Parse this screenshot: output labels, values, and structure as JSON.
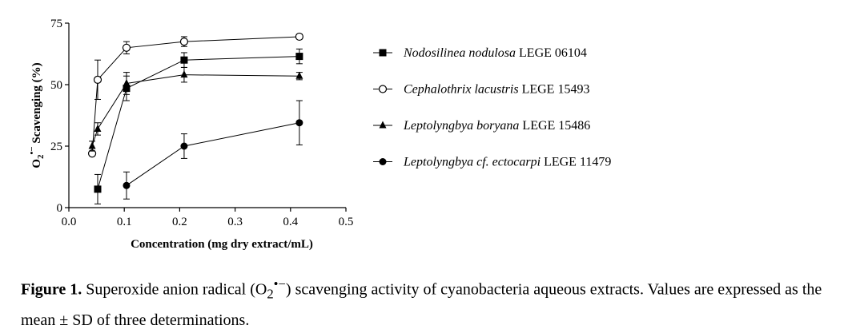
{
  "chart_data": {
    "type": "line",
    "title": "",
    "xlabel": "Concentration (mg dry extract/mL)",
    "ylabel_parts": {
      "base": "O",
      "sub": "2",
      "sup": "•−",
      "rest": " Scavenging (%)"
    },
    "xlim": [
      0,
      0.5
    ],
    "ylim": [
      0,
      75
    ],
    "xticks": [
      "0.0",
      "0.1",
      "0.2",
      "0.3",
      "0.4",
      "0.5"
    ],
    "xtick_values": [
      0,
      0.1,
      0.2,
      0.3,
      0.4,
      0.5
    ],
    "yticks": [
      "0",
      "25",
      "50",
      "75"
    ],
    "ytick_values": [
      0,
      25,
      50,
      75
    ],
    "grid": false,
    "legend_position": "right",
    "series": [
      {
        "name_italic": "Nodosilinea nodulosa",
        "name_rest": " LEGE 06104",
        "marker": "square-filled",
        "x": [
          0.052,
          0.104,
          0.208,
          0.416
        ],
        "y": [
          7.5,
          48.5,
          60,
          61.5
        ],
        "err": [
          6,
          5,
          3,
          3
        ]
      },
      {
        "name_italic": "Cephalothrix lacustris",
        "name_rest": " LEGE 15493",
        "marker": "circle-open",
        "x": [
          0.042,
          0.052,
          0.104,
          0.208,
          0.416
        ],
        "y": [
          22,
          52,
          65,
          67.5,
          69.5
        ],
        "err": [
          0,
          8,
          2.5,
          2,
          1
        ]
      },
      {
        "name_italic": "Leptolyngbya boryana",
        "name_rest": " LEGE 15486",
        "marker": "triangle-filled",
        "x": [
          0.042,
          0.052,
          0.104,
          0.208,
          0.416
        ],
        "y": [
          25,
          32,
          50.5,
          54,
          53.5
        ],
        "err": [
          2,
          2.5,
          4.5,
          3,
          1.5
        ]
      },
      {
        "name_italic": "Leptolyngbya cf. ectocarpi",
        "name_rest": " LEGE 11479",
        "marker": "circle-filled",
        "x": [
          0.104,
          0.208,
          0.416
        ],
        "y": [
          9,
          25,
          34.5
        ],
        "err": [
          5.5,
          5,
          9
        ]
      }
    ]
  },
  "caption": {
    "label": "Figure 1.",
    "text_before": " Superoxide anion radical (O",
    "sub": "2",
    "sup": "•−",
    "text_after": ") scavenging activity of cyanobacteria aqueous extracts. Values are expressed as the mean ± SD of three determinations."
  }
}
